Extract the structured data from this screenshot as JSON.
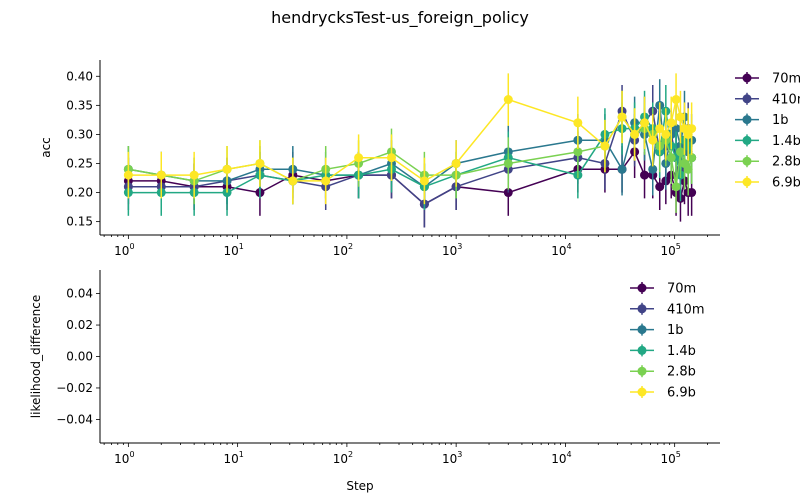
{
  "title": "hendrycksTest-us_foreign_policy",
  "series_colors": {
    "70m": "#440154",
    "410m": "#414487",
    "1b": "#2a788e",
    "1.4b": "#22a884",
    "2.8b": "#7ad151",
    "6.9b": "#fde725"
  },
  "chart_data": [
    {
      "type": "line",
      "xlabel": "",
      "ylabel": "acc",
      "xscale": "log",
      "xlim": [
        0.55,
        260000
      ],
      "ylim": [
        0.127,
        0.428
      ],
      "yticks": [
        0.15,
        0.2,
        0.25,
        0.3,
        0.35,
        0.4
      ],
      "ytick_labels": [
        "0.15",
        "0.20",
        "0.25",
        "0.30",
        "0.35",
        "0.40"
      ],
      "xticks": [
        1,
        10,
        100,
        1000,
        10000,
        100000
      ],
      "xtick_labels": [
        {
          "base": "10",
          "exp": "0"
        },
        {
          "base": "10",
          "exp": "1"
        },
        {
          "base": "10",
          "exp": "2"
        },
        {
          "base": "10",
          "exp": "3"
        },
        {
          "base": "10",
          "exp": "4"
        },
        {
          "base": "10",
          "exp": "5"
        }
      ],
      "legend_position": "upper-right-outside",
      "grid": false,
      "series": [
        {
          "name": "70m",
          "x": [
            1,
            2,
            4,
            8,
            16,
            32,
            64,
            128,
            256,
            512,
            1000,
            3000,
            13000,
            23000,
            33000,
            43000,
            53000,
            63000,
            73000,
            83000,
            93000,
            103000,
            113000,
            123000,
            133000,
            143000
          ],
          "y": [
            0.22,
            0.22,
            0.21,
            0.21,
            0.2,
            0.23,
            0.22,
            0.23,
            0.23,
            0.18,
            0.21,
            0.2,
            0.24,
            0.24,
            0.24,
            0.27,
            0.23,
            0.23,
            0.21,
            0.22,
            0.23,
            0.2,
            0.19,
            0.22,
            0.2,
            0.2
          ],
          "err": [
            0.04,
            0.04,
            0.04,
            0.04,
            0.04,
            0.04,
            0.04,
            0.04,
            0.04,
            0.04,
            0.04,
            0.04,
            0.04,
            0.04,
            0.04,
            0.045,
            0.04,
            0.04,
            0.04,
            0.04,
            0.04,
            0.04,
            0.04,
            0.04,
            0.04,
            0.04
          ]
        },
        {
          "name": "410m",
          "x": [
            1,
            2,
            4,
            8,
            16,
            32,
            64,
            128,
            256,
            512,
            1000,
            3000,
            13000,
            23000,
            33000,
            43000,
            53000,
            63000,
            73000,
            83000,
            93000,
            103000,
            113000,
            123000,
            133000,
            143000
          ],
          "y": [
            0.21,
            0.21,
            0.21,
            0.22,
            0.23,
            0.22,
            0.21,
            0.23,
            0.23,
            0.18,
            0.21,
            0.24,
            0.26,
            0.25,
            0.34,
            0.29,
            0.32,
            0.34,
            0.27,
            0.28,
            0.3,
            0.26,
            0.24,
            0.29,
            0.31,
            0.26
          ],
          "err": [
            0.04,
            0.04,
            0.04,
            0.04,
            0.04,
            0.04,
            0.04,
            0.04,
            0.04,
            0.04,
            0.04,
            0.04,
            0.045,
            0.045,
            0.045,
            0.045,
            0.045,
            0.045,
            0.045,
            0.045,
            0.045,
            0.045,
            0.045,
            0.045,
            0.045,
            0.045
          ]
        },
        {
          "name": "1b",
          "x": [
            1,
            2,
            4,
            8,
            16,
            32,
            64,
            128,
            256,
            512,
            1000,
            3000,
            13000,
            23000,
            33000,
            43000,
            53000,
            63000,
            73000,
            83000,
            93000,
            103000,
            113000,
            123000,
            133000,
            143000
          ],
          "y": [
            0.24,
            0.23,
            0.22,
            0.22,
            0.24,
            0.24,
            0.23,
            0.23,
            0.25,
            0.21,
            0.25,
            0.27,
            0.29,
            0.29,
            0.24,
            0.32,
            0.3,
            0.24,
            0.35,
            0.25,
            0.3,
            0.31,
            0.28,
            0.33,
            0.27,
            0.29
          ],
          "err": [
            0.04,
            0.04,
            0.04,
            0.04,
            0.04,
            0.04,
            0.04,
            0.04,
            0.04,
            0.04,
            0.04,
            0.045,
            0.045,
            0.045,
            0.045,
            0.045,
            0.045,
            0.045,
            0.045,
            0.045,
            0.045,
            0.045,
            0.045,
            0.045,
            0.045,
            0.045
          ]
        },
        {
          "name": "1.4b",
          "x": [
            1,
            2,
            4,
            8,
            16,
            32,
            64,
            128,
            256,
            512,
            1000,
            3000,
            13000,
            23000,
            33000,
            43000,
            53000,
            63000,
            73000,
            83000,
            93000,
            103000,
            113000,
            123000,
            133000,
            143000
          ],
          "y": [
            0.2,
            0.2,
            0.2,
            0.2,
            0.23,
            0.22,
            0.23,
            0.23,
            0.24,
            0.21,
            0.23,
            0.26,
            0.23,
            0.3,
            0.31,
            0.31,
            0.33,
            0.31,
            0.27,
            0.34,
            0.28,
            0.26,
            0.23,
            0.29,
            0.28,
            0.26
          ],
          "err": [
            0.04,
            0.04,
            0.04,
            0.04,
            0.04,
            0.04,
            0.04,
            0.04,
            0.04,
            0.04,
            0.04,
            0.045,
            0.04,
            0.045,
            0.045,
            0.045,
            0.045,
            0.045,
            0.045,
            0.045,
            0.045,
            0.045,
            0.045,
            0.045,
            0.045,
            0.045
          ]
        },
        {
          "name": "2.8b",
          "x": [
            1,
            2,
            4,
            8,
            16,
            32,
            64,
            128,
            256,
            512,
            1000,
            3000,
            13000,
            23000,
            33000,
            43000,
            53000,
            63000,
            73000,
            83000,
            93000,
            103000,
            113000,
            123000,
            133000,
            143000
          ],
          "y": [
            0.24,
            0.23,
            0.22,
            0.24,
            0.25,
            0.22,
            0.24,
            0.25,
            0.27,
            0.23,
            0.23,
            0.25,
            0.27,
            0.28,
            0.33,
            0.3,
            0.31,
            0.3,
            0.28,
            0.29,
            0.26,
            0.21,
            0.27,
            0.25,
            0.24,
            0.26
          ],
          "err": [
            0.04,
            0.04,
            0.04,
            0.04,
            0.04,
            0.04,
            0.04,
            0.04,
            0.04,
            0.04,
            0.04,
            0.045,
            0.045,
            0.045,
            0.045,
            0.045,
            0.045,
            0.045,
            0.045,
            0.045,
            0.045,
            0.045,
            0.045,
            0.045,
            0.045,
            0.045
          ]
        },
        {
          "name": "6.9b",
          "x": [
            1,
            2,
            4,
            8,
            16,
            32,
            64,
            128,
            256,
            512,
            1000,
            3000,
            13000,
            23000,
            33000,
            43000,
            53000,
            63000,
            73000,
            83000,
            93000,
            103000,
            113000,
            123000,
            133000,
            143000
          ],
          "y": [
            0.23,
            0.23,
            0.23,
            0.24,
            0.25,
            0.22,
            0.22,
            0.26,
            0.26,
            0.22,
            0.25,
            0.36,
            0.32,
            0.28,
            0.33,
            0.3,
            0.32,
            0.29,
            0.31,
            0.3,
            0.32,
            0.36,
            0.33,
            0.31,
            0.3,
            0.31
          ],
          "err": [
            0.04,
            0.04,
            0.04,
            0.04,
            0.04,
            0.04,
            0.04,
            0.04,
            0.04,
            0.04,
            0.04,
            0.045,
            0.045,
            0.045,
            0.045,
            0.045,
            0.045,
            0.045,
            0.045,
            0.045,
            0.045,
            0.045,
            0.045,
            0.045,
            0.045,
            0.045
          ]
        }
      ]
    },
    {
      "type": "line",
      "xlabel": "Step",
      "ylabel": "likelihood_difference",
      "xscale": "log",
      "xlim": [
        0.55,
        260000
      ],
      "ylim": [
        -0.055,
        0.055
      ],
      "yticks": [
        -0.04,
        -0.02,
        0.0,
        0.02,
        0.04
      ],
      "ytick_labels": [
        "−0.04",
        "−0.02",
        "0.00",
        "0.02",
        "0.04"
      ],
      "xticks": [
        1,
        10,
        100,
        1000,
        10000,
        100000
      ],
      "xtick_labels": [
        {
          "base": "10",
          "exp": "0"
        },
        {
          "base": "10",
          "exp": "1"
        },
        {
          "base": "10",
          "exp": "2"
        },
        {
          "base": "10",
          "exp": "3"
        },
        {
          "base": "10",
          "exp": "4"
        },
        {
          "base": "10",
          "exp": "5"
        }
      ],
      "legend_position": "upper-right",
      "grid": false,
      "series": [
        {
          "name": "70m",
          "x": [],
          "y": []
        },
        {
          "name": "410m",
          "x": [],
          "y": []
        },
        {
          "name": "1b",
          "x": [],
          "y": []
        },
        {
          "name": "1.4b",
          "x": [],
          "y": []
        },
        {
          "name": "2.8b",
          "x": [],
          "y": []
        },
        {
          "name": "6.9b",
          "x": [],
          "y": []
        }
      ]
    }
  ]
}
